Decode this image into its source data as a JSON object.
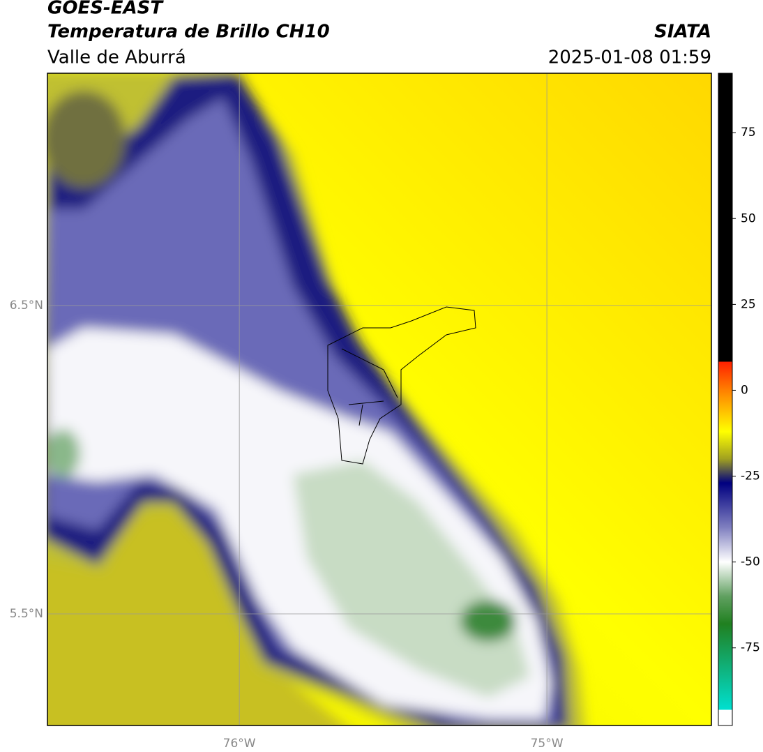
{
  "chart_data": {
    "type": "map",
    "title": "GOES-EAST",
    "subtitle": "Temperatura de Brillo CH10",
    "region": "Valle de Aburrá",
    "source": "SIATA",
    "timestamp": "2025-01-08 01:59",
    "xlim": [
      -76.624,
      -74.465
    ],
    "xticks": [
      {
        "value": -76,
        "label": "76°W"
      },
      {
        "value": -75,
        "label": "75°W"
      }
    ],
    "ylim": [
      5.138,
      7.253
    ],
    "yticks": [
      {
        "value": 5.5,
        "label": "5.5°N"
      },
      {
        "value": 6.5,
        "label": "6.5°N"
      }
    ],
    "grid": true,
    "colorbar": {
      "lim": [
        -97.6,
        92.3
      ],
      "ticks": [
        75,
        50,
        25,
        0,
        -25,
        -50,
        -75
      ],
      "stops": [
        {
          "value": 92.3,
          "color": "#000000"
        },
        {
          "value": 8.3,
          "color": "#000000"
        },
        {
          "value": 8.3,
          "color": "#ff2000"
        },
        {
          "value": 0,
          "color": "#ff8000"
        },
        {
          "value": -12,
          "color": "#ffff00"
        },
        {
          "value": -20,
          "color": "#a0a020"
        },
        {
          "value": -27,
          "color": "#000080"
        },
        {
          "value": -40,
          "color": "#8080c0"
        },
        {
          "value": -50,
          "color": "#ffffff"
        },
        {
          "value": -60,
          "color": "#60a060"
        },
        {
          "value": -68,
          "color": "#208020"
        },
        {
          "value": -93,
          "color": "#00e0d0"
        },
        {
          "value": -93,
          "color": "#ffffff"
        },
        {
          "value": -97.6,
          "color": "#ffffff"
        }
      ]
    }
  }
}
